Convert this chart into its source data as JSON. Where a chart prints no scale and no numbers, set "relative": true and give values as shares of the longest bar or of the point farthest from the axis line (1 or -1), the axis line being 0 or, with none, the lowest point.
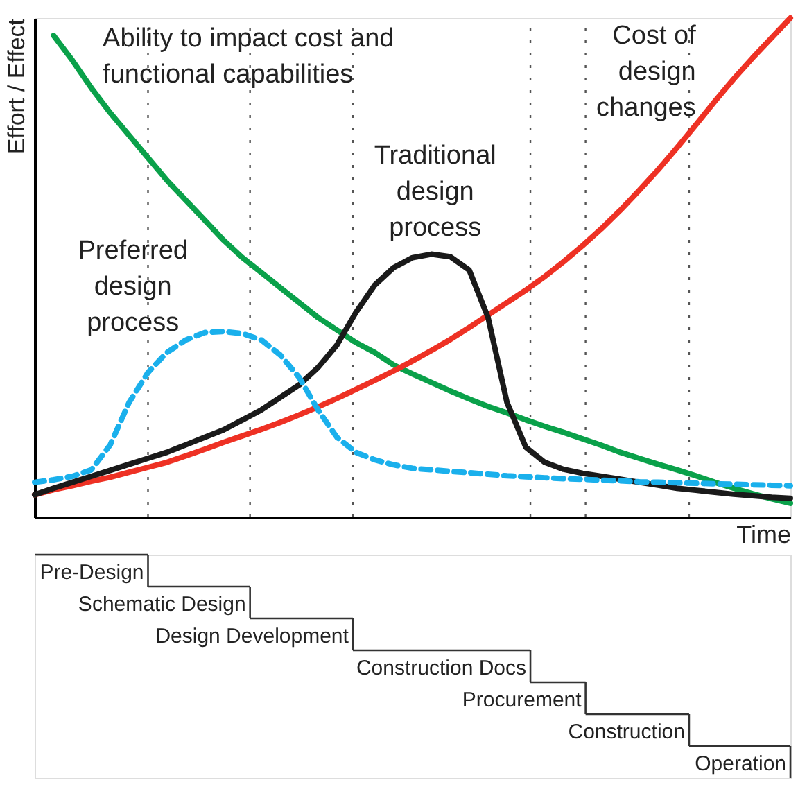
{
  "chart_data": {
    "type": "line",
    "relative": true,
    "ylabel": "Effort / Effect",
    "xlabel": "Time",
    "categories": [
      null,
      null,
      null,
      null,
      null,
      null,
      null,
      null,
      null,
      null,
      null,
      null,
      null,
      null,
      null,
      null,
      null,
      null,
      null,
      null,
      null,
      null,
      null,
      null,
      null,
      null,
      null,
      null,
      null,
      null,
      null,
      null,
      null,
      null,
      null,
      null,
      null,
      null,
      null,
      null,
      null
    ],
    "tick_labels": false,
    "grid": "x",
    "marker": "none",
    "annotations": [
      "Pre-Design",
      "Schematic Design",
      "Design Development",
      "Construction Docs",
      "Procurement",
      "Construction",
      "Operation"
    ],
    "series": [
      {
        "name": "Ability to impact cost and functional capabilities",
        "color": "#0aa14a",
        "line_style": "solid",
        "values": [
          null,
          0.965,
          0.915,
          0.86,
          0.81,
          0.765,
          0.72,
          0.675,
          0.635,
          0.595,
          0.555,
          0.52,
          0.49,
          0.46,
          0.43,
          0.4,
          0.375,
          0.35,
          0.33,
          0.305,
          0.287,
          0.27,
          0.253,
          0.237,
          0.222,
          0.209,
          0.195,
          0.182,
          0.17,
          0.157,
          0.144,
          0.13,
          0.118,
          0.106,
          0.095,
          0.083,
          0.07,
          0.058,
          0.047,
          0.037,
          0.028
        ]
      },
      {
        "name": "Cost of design changes",
        "color": "#ee3124",
        "line_style": "solid",
        "values": [
          0.045,
          0.055,
          0.063,
          0.072,
          0.08,
          0.09,
          0.1,
          0.11,
          0.123,
          0.136,
          0.15,
          0.163,
          0.176,
          0.19,
          0.205,
          0.221,
          0.238,
          0.256,
          0.274,
          0.293,
          0.313,
          0.334,
          0.356,
          0.38,
          0.405,
          0.43,
          0.455,
          0.482,
          0.512,
          0.544,
          0.578,
          0.615,
          0.655,
          0.696,
          0.74,
          0.786,
          0.833,
          0.878,
          0.92,
          0.96,
          1.0
        ]
      },
      {
        "name": "Traditional design process",
        "color": "#1a1a1a",
        "line_style": "solid",
        "values": [
          0.045,
          0.058,
          0.07,
          0.082,
          0.094,
          0.106,
          0.118,
          0.13,
          0.145,
          0.16,
          0.175,
          0.195,
          0.215,
          0.24,
          0.265,
          0.3,
          0.345,
          0.41,
          0.465,
          0.5,
          0.52,
          0.527,
          0.522,
          0.495,
          0.4,
          0.23,
          0.14,
          0.11,
          0.096,
          0.088,
          0.082,
          0.076,
          0.07,
          0.064,
          0.058,
          0.054,
          0.05,
          0.046,
          0.043,
          0.04,
          0.038
        ]
      },
      {
        "name": "Preferred design process",
        "color": "#1ab0ec",
        "line_style": "dashed",
        "values": [
          0.07,
          0.075,
          0.082,
          0.095,
          0.145,
          0.23,
          0.29,
          0.33,
          0.355,
          0.37,
          0.372,
          0.368,
          0.355,
          0.325,
          0.28,
          0.215,
          0.16,
          0.13,
          0.115,
          0.105,
          0.098,
          0.095,
          0.092,
          0.089,
          0.086,
          0.083,
          0.081,
          0.079,
          0.077,
          0.076,
          0.074,
          0.073,
          0.071,
          0.07,
          0.069,
          0.068,
          0.067,
          0.066,
          0.065,
          0.064,
          0.063
        ]
      }
    ]
  }
}
